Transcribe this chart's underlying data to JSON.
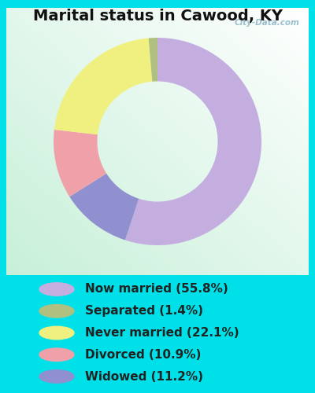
{
  "title": "Marital status in Cawood, KY",
  "legend_labels": [
    "Now married (55.8%)",
    "Separated (1.4%)",
    "Never married (22.1%)",
    "Divorced (10.9%)",
    "Widowed (11.2%)"
  ],
  "legend_colors": [
    "#c4aee0",
    "#b0c080",
    "#f0f080",
    "#f0a0a8",
    "#9090d0"
  ],
  "plot_values": [
    55.8,
    11.2,
    10.9,
    22.1,
    1.4
  ],
  "plot_colors": [
    "#c4aee0",
    "#9090d0",
    "#f0a0a8",
    "#f0f080",
    "#b0c080"
  ],
  "background_color": "#00e0e8",
  "chart_bg_tl": "#e8f8e8",
  "chart_bg_br": "#c8f0d8",
  "title_fontsize": 14,
  "legend_fontsize": 11,
  "watermark": "City-Data.com",
  "donut_width": 0.42,
  "startangle": 90
}
